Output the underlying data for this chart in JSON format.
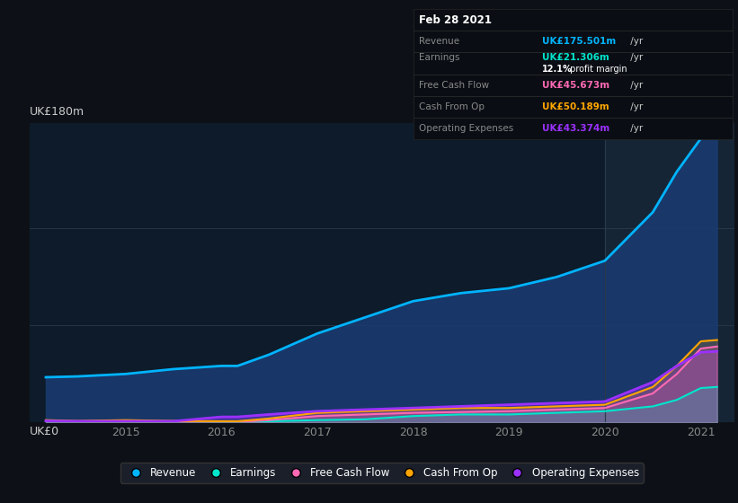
{
  "background_color": "#0d1117",
  "plot_bg_color": "#0d1b2a",
  "ylabel_top": "UK£180m",
  "ylabel_bottom": "UK£0",
  "years": [
    2014.17,
    2014.5,
    2015.0,
    2015.5,
    2016.0,
    2016.17,
    2016.5,
    2017.0,
    2017.5,
    2018.0,
    2018.5,
    2019.0,
    2019.5,
    2020.0,
    2020.5,
    2020.75,
    2021.0,
    2021.17
  ],
  "revenue": [
    28,
    28.5,
    30,
    33,
    35,
    35,
    42,
    55,
    65,
    75,
    80,
    83,
    90,
    100,
    130,
    155,
    175.5,
    178
  ],
  "earnings": [
    0.5,
    0.3,
    0.3,
    0.2,
    0.4,
    0.4,
    0.8,
    1.5,
    2,
    4,
    5,
    5,
    6,
    7,
    10,
    14,
    21.3,
    22
  ],
  "free_cash_flow": [
    0.5,
    0.3,
    0.8,
    0.5,
    0.3,
    0.3,
    1.5,
    4,
    5,
    6,
    6.5,
    7,
    8,
    9,
    18,
    30,
    45.7,
    47
  ],
  "cash_from_op": [
    1.5,
    1.0,
    1.5,
    1.0,
    0.8,
    0.8,
    2.5,
    6,
    7,
    8,
    9,
    9,
    10,
    11,
    22,
    35,
    50.2,
    51
  ],
  "operating_expenses": [
    1.0,
    0.8,
    0.8,
    0.8,
    3.5,
    3.5,
    5,
    7,
    8,
    9,
    10,
    11,
    12,
    13,
    25,
    35,
    43.4,
    44
  ],
  "revenue_color": "#00b4ff",
  "earnings_color": "#00e5cc",
  "free_cash_flow_color": "#ff69b4",
  "cash_from_op_color": "#ffa500",
  "operating_expenses_color": "#9b30ff",
  "revenue_fill_color": "#1a3a6e",
  "ylim": [
    0,
    185
  ],
  "xlim_min": 2014.0,
  "xlim_max": 2021.35,
  "xtick_positions": [
    2015,
    2016,
    2017,
    2018,
    2019,
    2020,
    2021
  ],
  "xtick_labels": [
    "2015",
    "2016",
    "2017",
    "2018",
    "2019",
    "2020",
    "2021"
  ],
  "grid_color": "#2a3a4a",
  "highlight_x_start": 2020.0,
  "highlight_x_end": 2021.35,
  "info_box": {
    "date": "Feb 28 2021",
    "revenue_label": "Revenue",
    "revenue_value": "UK£175.501m",
    "earnings_label": "Earnings",
    "earnings_value": "UK£21.306m",
    "profit_margin": "12.1%",
    "profit_margin_text": " profit margin",
    "fcf_label": "Free Cash Flow",
    "fcf_value": "UK£45.673m",
    "cashop_label": "Cash From Op",
    "cashop_value": "UK£50.189m",
    "opex_label": "Operating Expenses",
    "opex_value": "UK£43.374m"
  },
  "legend_items": [
    {
      "label": "Revenue",
      "color": "#00b4ff"
    },
    {
      "label": "Earnings",
      "color": "#00e5cc"
    },
    {
      "label": "Free Cash Flow",
      "color": "#ff69b4"
    },
    {
      "label": "Cash From Op",
      "color": "#ffa500"
    },
    {
      "label": "Operating Expenses",
      "color": "#9b30ff"
    }
  ]
}
